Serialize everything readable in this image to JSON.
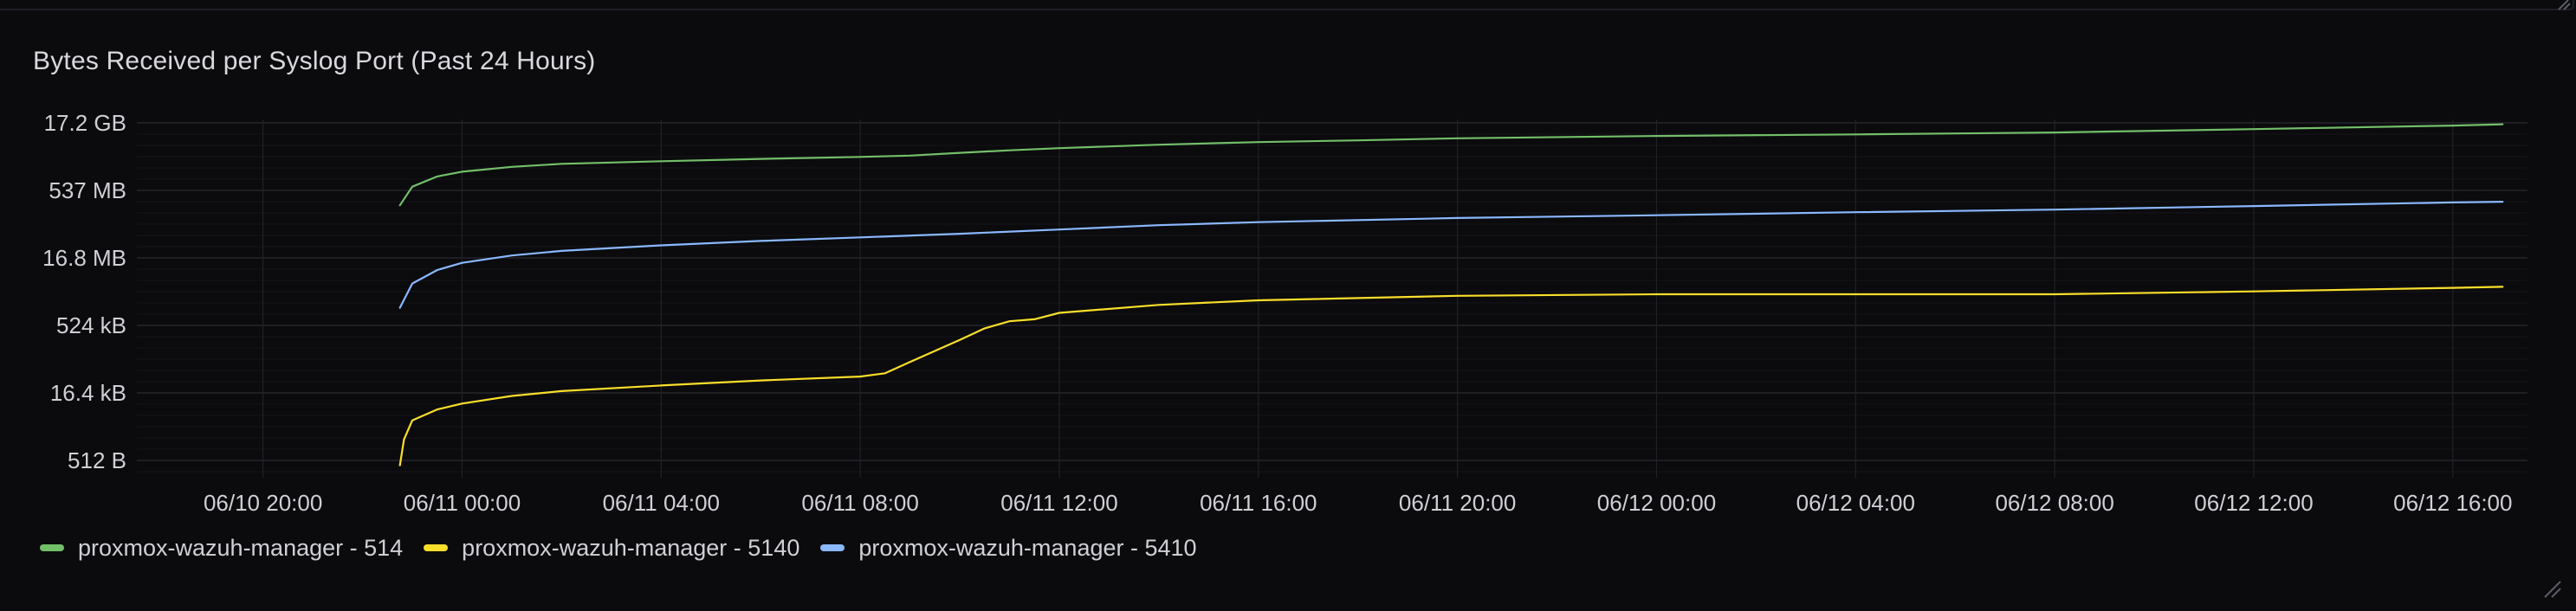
{
  "panel": {
    "title": "Bytes Received per Syslog Port (Past 24 Hours)"
  },
  "chart_data": {
    "type": "line",
    "title": "Bytes Received per Syslog Port (Past 24 Hours)",
    "y_scale": "log",
    "y_ticks": [
      "17.2 GB",
      "537 MB",
      "16.8 MB",
      "524 kB",
      "16.4 kB",
      "512 B"
    ],
    "y_tick_values_bytes": [
      17179869184,
      536870912,
      16777216,
      524288,
      16384,
      512
    ],
    "x_ticks": [
      "06/10 20:00",
      "06/11 00:00",
      "06/11 04:00",
      "06/11 08:00",
      "06/11 12:00",
      "06/11 16:00",
      "06/11 20:00",
      "06/12 00:00",
      "06/12 04:00",
      "06/12 08:00",
      "06/12 12:00",
      "06/12 16:00"
    ],
    "x_range": [
      "06/10 17:30",
      "06/12 17:30"
    ],
    "grid": true,
    "legend_placement": "bottom-left",
    "series": [
      {
        "name": "proxmox-wazuh-manager - 514",
        "color": "#73bf69",
        "points": [
          [
            "06/10 22:45",
            250000000
          ],
          [
            "06/10 23:00",
            650000000
          ],
          [
            "06/10 23:30",
            1100000000
          ],
          [
            "06/11 00:00",
            1400000000
          ],
          [
            "06/11 01:00",
            1800000000
          ],
          [
            "06/11 02:00",
            2100000000
          ],
          [
            "06/11 04:00",
            2400000000
          ],
          [
            "06/11 06:00",
            2700000000
          ],
          [
            "06/11 08:00",
            3000000000
          ],
          [
            "06/11 09:00",
            3200000000
          ],
          [
            "06/11 10:00",
            3700000000
          ],
          [
            "06/11 11:00",
            4200000000
          ],
          [
            "06/11 12:00",
            4700000000
          ],
          [
            "06/11 14:00",
            5600000000
          ],
          [
            "06/11 16:00",
            6400000000
          ],
          [
            "06/11 18:00",
            7000000000
          ],
          [
            "06/11 20:00",
            7800000000
          ],
          [
            "06/12 00:00",
            8800000000
          ],
          [
            "06/12 04:00",
            9500000000
          ],
          [
            "06/12 08:00",
            10500000000
          ],
          [
            "06/12 12:00",
            12500000000
          ],
          [
            "06/12 16:00",
            15000000000
          ],
          [
            "06/12 17:00",
            16000000000
          ]
        ]
      },
      {
        "name": "proxmox-wazuh-manager - 5140",
        "color": "#fade2a",
        "points": [
          [
            "06/10 22:45",
            400
          ],
          [
            "06/10 22:50",
            1500
          ],
          [
            "06/10 23:00",
            4000
          ],
          [
            "06/10 23:30",
            7000
          ],
          [
            "06/11 00:00",
            9500
          ],
          [
            "06/11 01:00",
            14000
          ],
          [
            "06/11 02:00",
            18000
          ],
          [
            "06/11 04:00",
            24000
          ],
          [
            "06/11 06:00",
            31000
          ],
          [
            "06/11 08:00",
            38000
          ],
          [
            "06/11 08:30",
            45000
          ],
          [
            "06/11 09:00",
            80000
          ],
          [
            "06/11 10:00",
            250000
          ],
          [
            "06/11 10:30",
            450000
          ],
          [
            "06/11 11:00",
            650000
          ],
          [
            "06/11 11:30",
            720000
          ],
          [
            "06/11 12:00",
            1000000
          ],
          [
            "06/11 14:00",
            1500000
          ],
          [
            "06/11 16:00",
            1900000
          ],
          [
            "06/11 20:00",
            2400000
          ],
          [
            "06/12 00:00",
            2600000
          ],
          [
            "06/12 04:00",
            2600000
          ],
          [
            "06/12 08:00",
            2600000
          ],
          [
            "06/12 12:00",
            3000000
          ],
          [
            "06/12 16:00",
            3600000
          ],
          [
            "06/12 17:00",
            3800000
          ]
        ]
      },
      {
        "name": "proxmox-wazuh-manager - 5410",
        "color": "#8ab8ff",
        "points": [
          [
            "06/10 22:45",
            1300000
          ],
          [
            "06/10 23:00",
            4500000
          ],
          [
            "06/10 23:30",
            9000000
          ],
          [
            "06/11 00:00",
            13000000
          ],
          [
            "06/11 01:00",
            19000000
          ],
          [
            "06/11 02:00",
            24000000
          ],
          [
            "06/11 04:00",
            32000000
          ],
          [
            "06/11 06:00",
            40000000
          ],
          [
            "06/11 08:00",
            48000000
          ],
          [
            "06/11 10:00",
            58000000
          ],
          [
            "06/11 12:00",
            72000000
          ],
          [
            "06/11 14:00",
            90000000
          ],
          [
            "06/11 16:00",
            105000000
          ],
          [
            "06/11 20:00",
            130000000
          ],
          [
            "06/12 00:00",
            150000000
          ],
          [
            "06/12 04:00",
            175000000
          ],
          [
            "06/12 08:00",
            200000000
          ],
          [
            "06/12 12:00",
            240000000
          ],
          [
            "06/12 16:00",
            290000000
          ],
          [
            "06/12 17:00",
            300000000
          ]
        ]
      }
    ]
  },
  "legend": {
    "items": [
      {
        "label": "proxmox-wazuh-manager - 514",
        "color": "#73bf69"
      },
      {
        "label": "proxmox-wazuh-manager - 5140",
        "color": "#fade2a"
      },
      {
        "label": "proxmox-wazuh-manager - 5410",
        "color": "#8ab8ff"
      }
    ]
  }
}
